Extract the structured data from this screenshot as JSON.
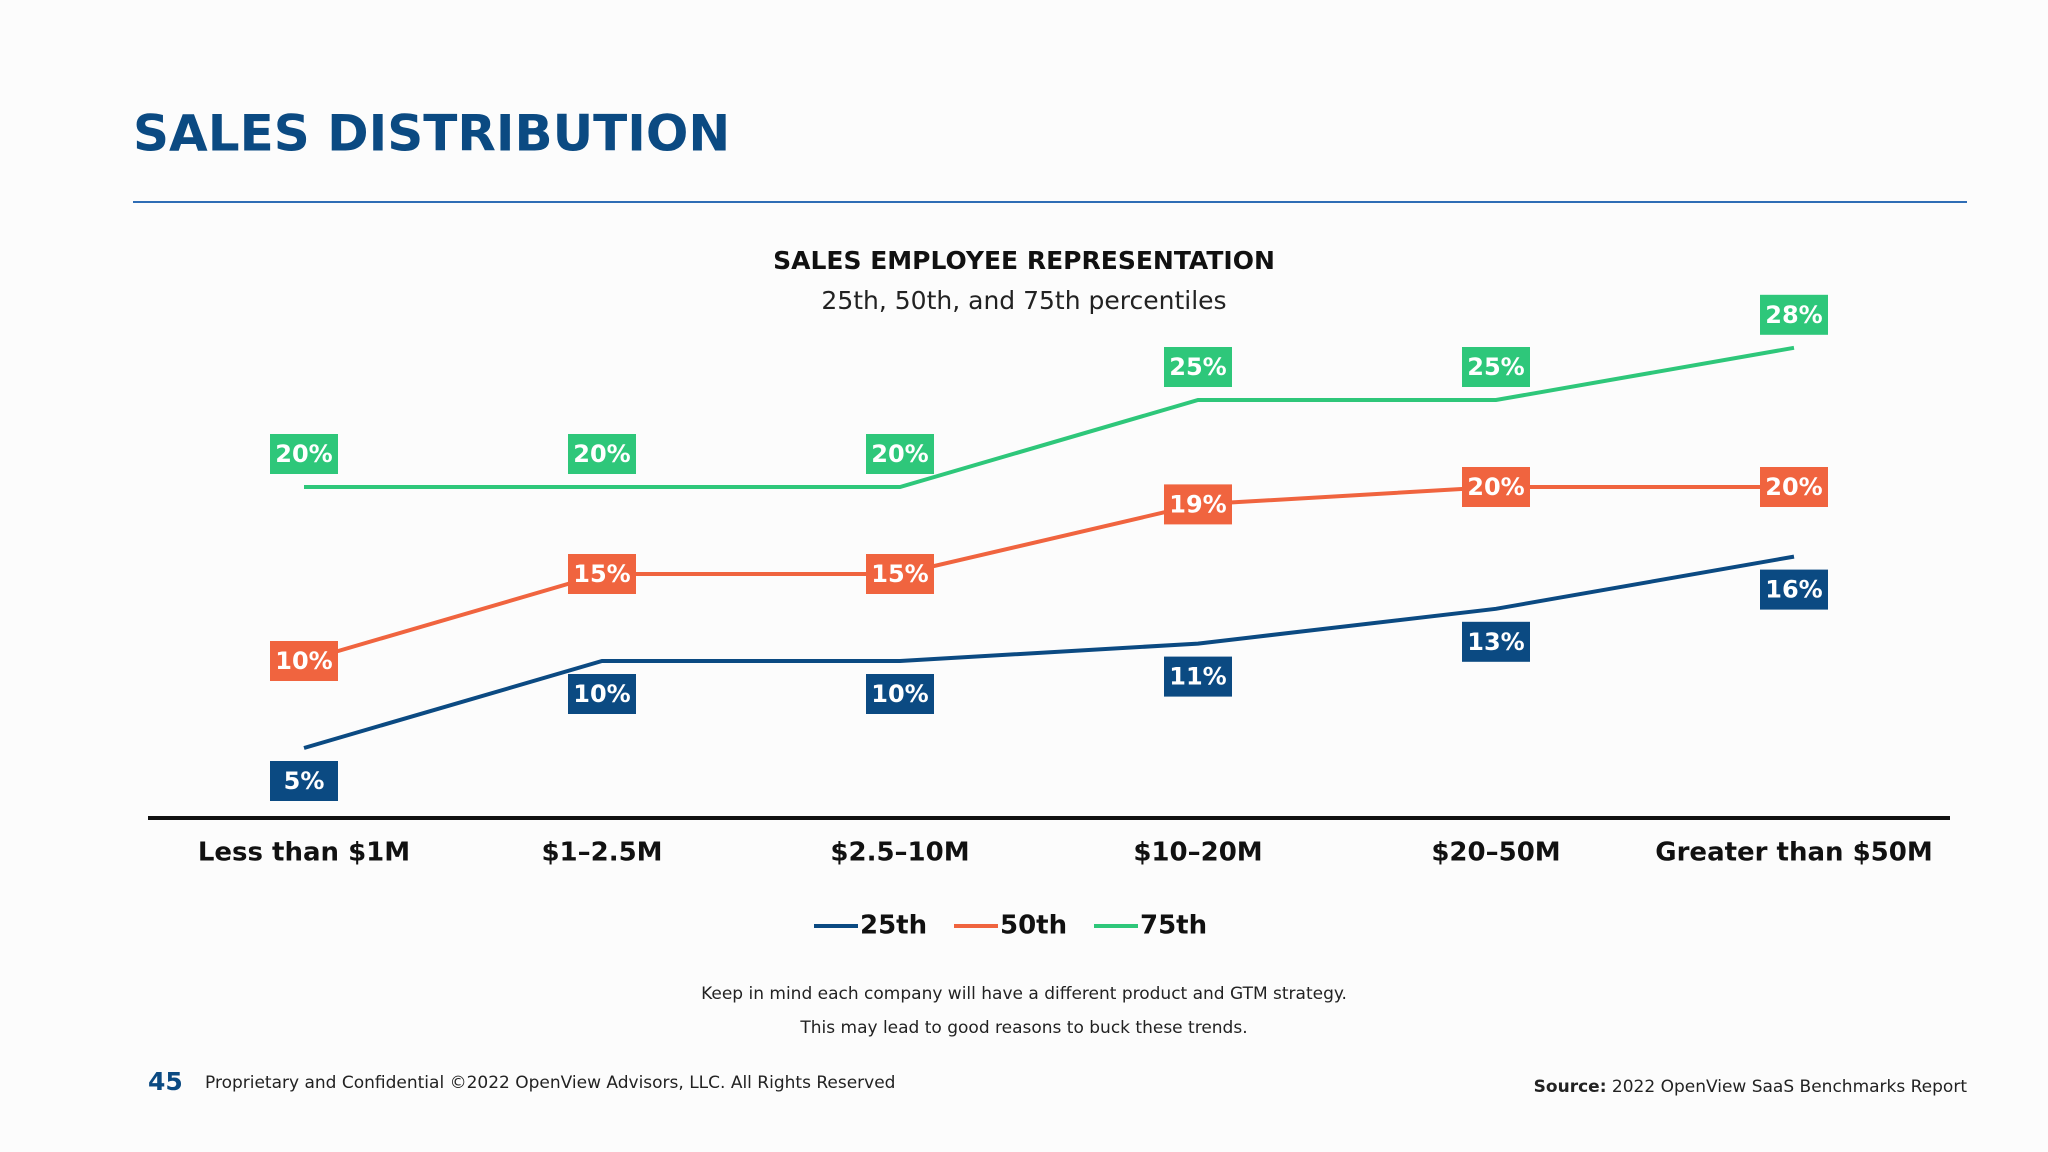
{
  "header": {
    "title": "SALES DISTRIBUTION"
  },
  "chart_data": {
    "type": "line",
    "title": "SALES EMPLOYEE REPRESENTATION",
    "subtitle": "25th, 50th, and 75th percentiles",
    "categories": [
      "Less than $1M",
      "$1–2.5M",
      "$2.5–10M",
      "$10–20M",
      "$20–50M",
      "Greater than $50M"
    ],
    "series": [
      {
        "name": "25th",
        "color": "#0b4a82",
        "values": [
          5,
          10,
          10,
          11,
          13,
          16
        ],
        "value_labels": [
          "5%",
          "10%",
          "10%",
          "11%",
          "13%",
          "16%"
        ]
      },
      {
        "name": "50th",
        "color": "#f0643f",
        "values": [
          10,
          15,
          15,
          19,
          20,
          20
        ],
        "value_labels": [
          "10%",
          "15%",
          "15%",
          "19%",
          "20%",
          "20%"
        ]
      },
      {
        "name": "75th",
        "color": "#2ec77a",
        "values": [
          20,
          20,
          20,
          25,
          25,
          28
        ],
        "value_labels": [
          "20%",
          "20%",
          "20%",
          "25%",
          "25%",
          "28%"
        ]
      }
    ],
    "notes": [
      "Keep in mind each company will have a different product and GTM strategy.",
      "This may lead to good reasons to buck these trends."
    ]
  },
  "footer": {
    "page": "45",
    "copyright": "Proprietary and Confidential ©2022 OpenView Advisors, LLC. All Rights Reserved",
    "source_label": "Source:",
    "source": "2022 OpenView SaaS Benchmarks Report"
  }
}
